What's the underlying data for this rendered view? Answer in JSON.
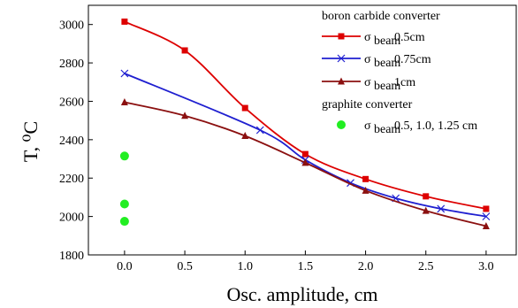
{
  "chart_data": {
    "type": "line",
    "xlabel": "Osc. amplitude, cm",
    "ylabel": "T, ⁰C",
    "xlim": [
      -0.3,
      3.25
    ],
    "ylim": [
      1800,
      3100
    ],
    "xticks": [
      0.0,
      0.5,
      1.0,
      1.5,
      2.0,
      2.5,
      3.0
    ],
    "xtick_labels": [
      "0.0",
      "0.5",
      "1.0",
      "1.5",
      "2.0",
      "2.5",
      "3.0"
    ],
    "yticks": [
      1800,
      2000,
      2200,
      2400,
      2600,
      2800,
      3000
    ],
    "ytick_labels": [
      "1800",
      "2000",
      "2200",
      "2400",
      "2600",
      "2800",
      "3000"
    ],
    "grid": false,
    "legend_position": "top-right",
    "legend_groups": [
      {
        "title": "boron carbide converter",
        "series_indices": [
          0,
          1,
          2
        ]
      },
      {
        "title": "graphite converter",
        "series_indices": [
          3
        ]
      }
    ],
    "series": [
      {
        "name": "σbeam 0.5cm",
        "legend_symbol": "σ",
        "legend_subscript": "beam",
        "legend_suffix": " 0.5cm",
        "color": "#dd0000",
        "marker": "square",
        "line": true,
        "x": [
          0.0,
          0.5,
          1.0,
          1.5,
          2.0,
          2.5,
          3.0
        ],
        "y": [
          3015,
          2865,
          2565,
          2325,
          2195,
          2105,
          2040
        ]
      },
      {
        "name": "σbeam 0.75cm",
        "legend_symbol": "σ",
        "legend_subscript": "beam",
        "legend_suffix": " 0.75cm",
        "color": "#1f1fd0",
        "marker": "x",
        "line": true,
        "x": [
          0.0,
          1.125,
          1.5,
          1.875,
          2.25,
          2.625,
          3.0
        ],
        "y": [
          2745,
          2450,
          2295,
          2175,
          2095,
          2040,
          2000
        ]
      },
      {
        "name": "σbeam 1cm",
        "legend_symbol": "σ",
        "legend_subscript": "beam",
        "legend_suffix": " 1cm",
        "color": "#8b1010",
        "marker": "triangle",
        "line": true,
        "x": [
          0.0,
          0.5,
          1.0,
          1.5,
          2.0,
          2.5,
          3.0
        ],
        "y": [
          2595,
          2525,
          2420,
          2280,
          2135,
          2030,
          1950
        ]
      },
      {
        "name": "σbeam 0.5, 1.0, 1.25 cm",
        "legend_symbol": "σ",
        "legend_subscript": "beam",
        "legend_suffix": " 0.5, 1.0, 1.25 cm",
        "color": "#22ee22",
        "marker": "circle",
        "line": false,
        "x": [
          0.0,
          0.0,
          0.0
        ],
        "y": [
          2315,
          2065,
          1975
        ]
      }
    ]
  }
}
